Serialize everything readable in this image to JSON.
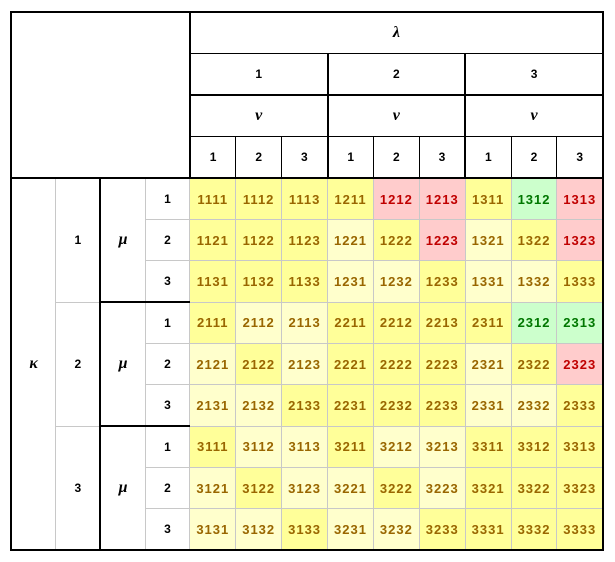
{
  "table": {
    "lambda_label": "λ",
    "nu_label": "ν",
    "kappa_label": "κ",
    "mu_label": "μ",
    "lambda_values": [
      "1",
      "2",
      "3"
    ],
    "nu_values": [
      "1",
      "2",
      "3"
    ],
    "kappa_values": [
      "1",
      "2",
      "3"
    ],
    "mu_values": [
      "1",
      "2",
      "3"
    ]
  },
  "colors": {
    "bright_yellow": "#FFFF99",
    "pale_yellow": "#FFFFCC",
    "pink": "#FFCCCC",
    "green": "#CCFFCC",
    "text_normal": "#996600",
    "text_red": "#C00000",
    "text_green": "#007700",
    "grid_gray": "#C8C8C8",
    "border_black": "#000000"
  },
  "cells": {
    "color_legend": {
      "y": "bright_yellow",
      "p": "pale_yellow",
      "r": "pink",
      "g": "green"
    },
    "rows": [
      [
        {
          "v": "1111",
          "c": "y"
        },
        {
          "v": "1112",
          "c": "y"
        },
        {
          "v": "1113",
          "c": "y"
        },
        {
          "v": "1211",
          "c": "y"
        },
        {
          "v": "1212",
          "c": "r"
        },
        {
          "v": "1213",
          "c": "r"
        },
        {
          "v": "1311",
          "c": "y"
        },
        {
          "v": "1312",
          "c": "g"
        },
        {
          "v": "1313",
          "c": "r"
        }
      ],
      [
        {
          "v": "1121",
          "c": "y"
        },
        {
          "v": "1122",
          "c": "y"
        },
        {
          "v": "1123",
          "c": "y"
        },
        {
          "v": "1221",
          "c": "p"
        },
        {
          "v": "1222",
          "c": "y"
        },
        {
          "v": "1223",
          "c": "r"
        },
        {
          "v": "1321",
          "c": "p"
        },
        {
          "v": "1322",
          "c": "y"
        },
        {
          "v": "1323",
          "c": "r"
        }
      ],
      [
        {
          "v": "1131",
          "c": "y"
        },
        {
          "v": "1132",
          "c": "y"
        },
        {
          "v": "1133",
          "c": "y"
        },
        {
          "v": "1231",
          "c": "p"
        },
        {
          "v": "1232",
          "c": "p"
        },
        {
          "v": "1233",
          "c": "y"
        },
        {
          "v": "1331",
          "c": "p"
        },
        {
          "v": "1332",
          "c": "p"
        },
        {
          "v": "1333",
          "c": "y"
        }
      ],
      [
        {
          "v": "2111",
          "c": "y"
        },
        {
          "v": "2112",
          "c": "p"
        },
        {
          "v": "2113",
          "c": "p"
        },
        {
          "v": "2211",
          "c": "y"
        },
        {
          "v": "2212",
          "c": "y"
        },
        {
          "v": "2213",
          "c": "y"
        },
        {
          "v": "2311",
          "c": "y"
        },
        {
          "v": "2312",
          "c": "g"
        },
        {
          "v": "2313",
          "c": "g"
        }
      ],
      [
        {
          "v": "2121",
          "c": "p"
        },
        {
          "v": "2122",
          "c": "y"
        },
        {
          "v": "2123",
          "c": "p"
        },
        {
          "v": "2221",
          "c": "y"
        },
        {
          "v": "2222",
          "c": "y"
        },
        {
          "v": "2223",
          "c": "y"
        },
        {
          "v": "2321",
          "c": "p"
        },
        {
          "v": "2322",
          "c": "y"
        },
        {
          "v": "2323",
          "c": "r"
        }
      ],
      [
        {
          "v": "2131",
          "c": "p"
        },
        {
          "v": "2132",
          "c": "p"
        },
        {
          "v": "2133",
          "c": "y"
        },
        {
          "v": "2231",
          "c": "y"
        },
        {
          "v": "2232",
          "c": "y"
        },
        {
          "v": "2233",
          "c": "y"
        },
        {
          "v": "2331",
          "c": "p"
        },
        {
          "v": "2332",
          "c": "p"
        },
        {
          "v": "2333",
          "c": "y"
        }
      ],
      [
        {
          "v": "3111",
          "c": "y"
        },
        {
          "v": "3112",
          "c": "p"
        },
        {
          "v": "3113",
          "c": "p"
        },
        {
          "v": "3211",
          "c": "y"
        },
        {
          "v": "3212",
          "c": "p"
        },
        {
          "v": "3213",
          "c": "p"
        },
        {
          "v": "3311",
          "c": "y"
        },
        {
          "v": "3312",
          "c": "y"
        },
        {
          "v": "3313",
          "c": "y"
        }
      ],
      [
        {
          "v": "3121",
          "c": "p"
        },
        {
          "v": "3122",
          "c": "y"
        },
        {
          "v": "3123",
          "c": "p"
        },
        {
          "v": "3221",
          "c": "p"
        },
        {
          "v": "3222",
          "c": "y"
        },
        {
          "v": "3223",
          "c": "p"
        },
        {
          "v": "3321",
          "c": "y"
        },
        {
          "v": "3322",
          "c": "y"
        },
        {
          "v": "3323",
          "c": "y"
        }
      ],
      [
        {
          "v": "3131",
          "c": "p"
        },
        {
          "v": "3132",
          "c": "p"
        },
        {
          "v": "3133",
          "c": "y"
        },
        {
          "v": "3231",
          "c": "p"
        },
        {
          "v": "3232",
          "c": "p"
        },
        {
          "v": "3233",
          "c": "y"
        },
        {
          "v": "3331",
          "c": "y"
        },
        {
          "v": "3332",
          "c": "y"
        },
        {
          "v": "3333",
          "c": "y"
        }
      ]
    ]
  }
}
